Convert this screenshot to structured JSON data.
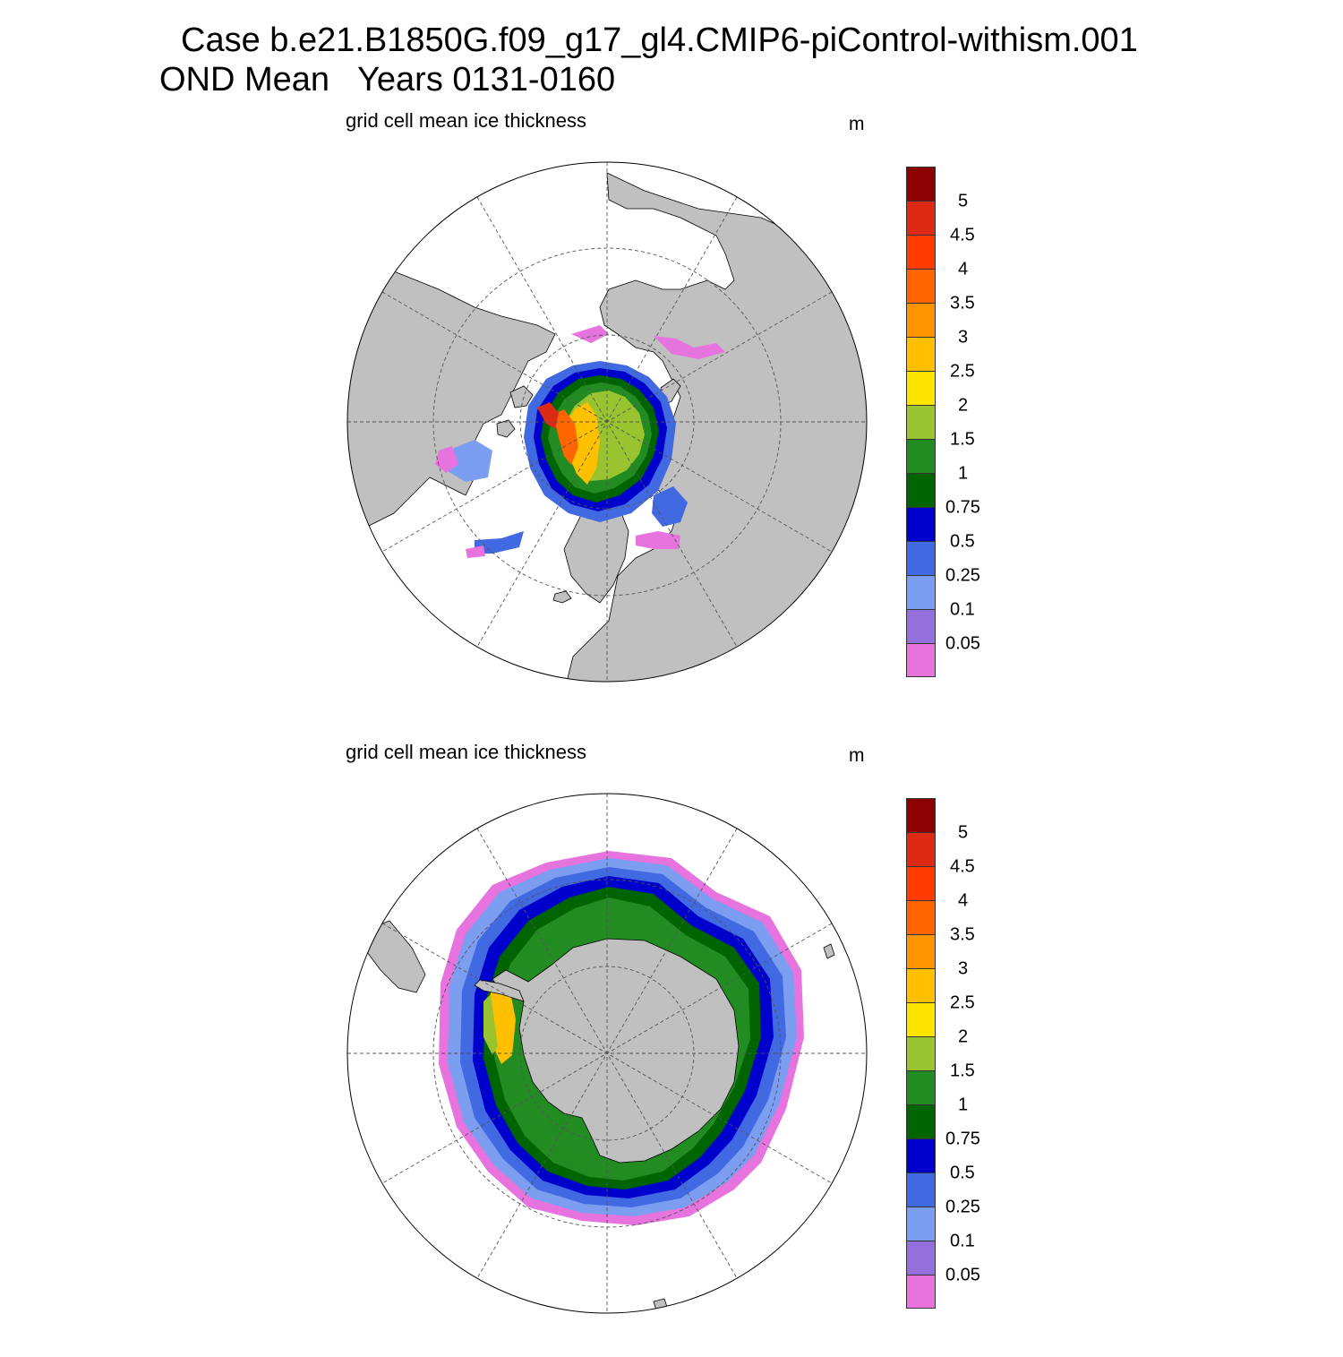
{
  "header": {
    "line1": "Case b.e21.B1850G.f09_g17_gl4.CMIP6-piControl-withism.001",
    "line2": "OND Mean   Years 0131-0160"
  },
  "panels": [
    {
      "id": "north",
      "title": "grid cell mean ice thickness",
      "units": "m"
    },
    {
      "id": "south",
      "title": "grid cell mean ice thickness",
      "units": "m"
    }
  ],
  "colorbar": {
    "labels": [
      "5",
      "4.5",
      "4",
      "3.5",
      "3",
      "2.5",
      "2",
      "1.5",
      "1",
      "0.75",
      "0.5",
      "0.25",
      "0.1",
      "0.05"
    ],
    "colors_top_to_bottom": [
      "#8b0000",
      "#dc2a14",
      "#ff3b00",
      "#ff6600",
      "#ff9400",
      "#ffc000",
      "#ffe400",
      "#9ac330",
      "#228b22",
      "#006400",
      "#0000cd",
      "#4169e1",
      "#7b9ef0",
      "#9370db",
      "#e673de"
    ]
  },
  "colors": {
    "land": "#c0c0c0",
    "ocean": "#ffffff",
    "grid": "#555555"
  }
}
